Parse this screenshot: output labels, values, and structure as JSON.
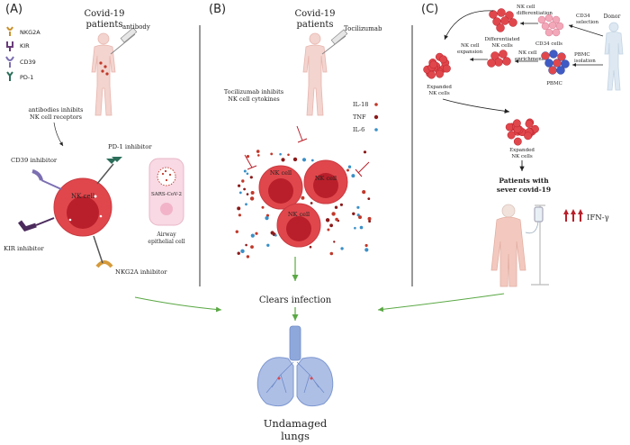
{
  "panel_labels": {
    "a": "(A)",
    "b": "(B)",
    "c": "(C)"
  },
  "panel_a": {
    "title_line1": "Covid-19",
    "title_line2": "patients",
    "antibody": "antibody",
    "receptors": [
      "NKG2A",
      "KIR",
      "CD39",
      "PD-1"
    ],
    "note_line1": "antibodies inhibits",
    "note_line2": "NK cell receptors",
    "cd39_inhibitor": "CD39 inhibitor",
    "pd1_inhibitor": "PD-1 inhibitor",
    "nk_cell": "NK cell",
    "sars_cov2": "SARS-CoV-2",
    "airway_line1": "Airway",
    "airway_line2": "epithelial cell",
    "kir_inhibitor": "KIR inhibitor",
    "nkg2a_inhibitor": "NKG2A inhibitor"
  },
  "panel_b": {
    "title_line1": "Covid-19",
    "title_line2": "patients",
    "drug": "Tocilizumab",
    "note_line1": "Tocilizumab inhibits",
    "note_line2": "NK cell cytokines",
    "legend": [
      "IL-18",
      "TNF",
      "IL-6"
    ],
    "nk_cell_1": "NK cell",
    "nk_cell_2": "NK cell",
    "nk_cell_3": "NK cell",
    "clears": "Clears infection"
  },
  "panel_c": {
    "donor": "Donor",
    "cd34_sel_line1": "CD34",
    "cd34_sel_line2": "selection",
    "cd34_cells": "CD34 cells",
    "nk_diff_line1": "NK cell",
    "nk_diff_line2": "differentiation",
    "diff_nk_line1": "Differentiated",
    "diff_nk_line2": "NK cells",
    "nk_exp_line1": "NK cell",
    "nk_exp_line2": "expansion",
    "expanded_1_line1": "Expanded",
    "expanded_1_line2": "NK cells",
    "nk_enrich_line1": "NK cell",
    "nk_enrich_line2": "enrichment",
    "pbmc_iso_line1": "PBMC",
    "pbmc_iso_line2": "isolation",
    "pbmc": "PBMC",
    "expanded_2_line1": "Expanded",
    "expanded_2_line2": "NK cells",
    "patients_line1": "Patients with",
    "patients_line2": "sever covid-19",
    "ifn": "IFN-γ"
  },
  "bottom": {
    "undamaged_line1": "Undamaged",
    "undamaged_line2": "lungs"
  },
  "colors": {
    "nk_red": "#e0474c",
    "nk_dark": "#b91f2a",
    "arrow_green": "#5aa844",
    "lung_blue": "#aebfe6",
    "human_pink": "#f3d4cf",
    "divider": "#333333"
  }
}
